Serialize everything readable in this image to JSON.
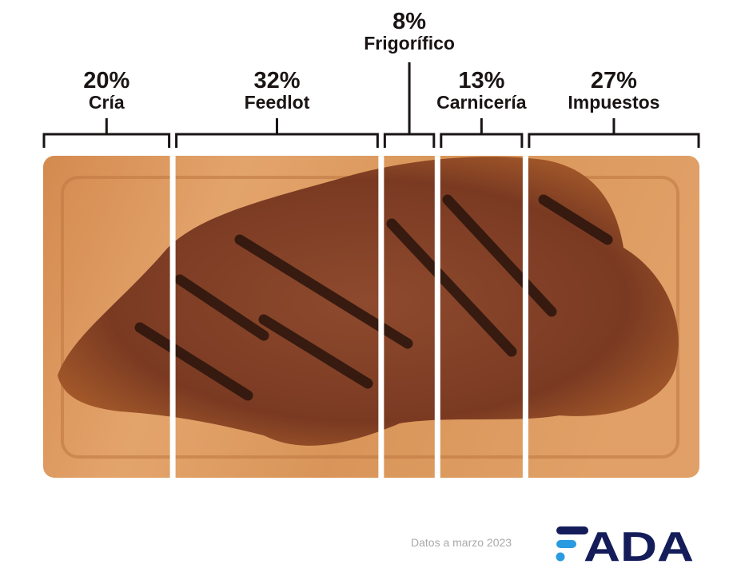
{
  "chart_data": {
    "type": "bar",
    "orientation": "stacked-horizontal",
    "unit": "%",
    "categories": [
      "Cría",
      "Feedlot",
      "Frigorífico",
      "Carnicería",
      "Impuestos"
    ],
    "values": [
      20,
      32,
      8,
      13,
      27
    ],
    "labels": [
      "20%",
      "32%",
      "8%",
      "13%",
      "27%"
    ],
    "grid": false,
    "legend": "none"
  },
  "footer": {
    "note": "Datos a marzo 2023",
    "logo_text": "FADA"
  },
  "colors": {
    "text": "#1a1414",
    "board": "#d9955a",
    "meat": "#7a3a22",
    "logo_dark": "#141c5a",
    "logo_blue": "#2a9be0"
  }
}
